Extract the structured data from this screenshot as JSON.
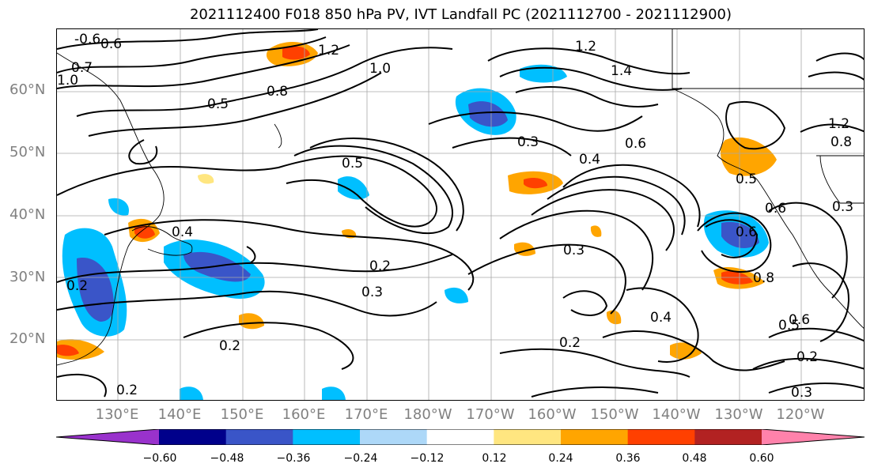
{
  "title": "2021112400 F018 850 hPa PV, IVT Landfall PC (2021112700 - 2021112900)",
  "map": {
    "lat_labels": [
      "60°N",
      "50°N",
      "40°N",
      "30°N",
      "20°N"
    ],
    "lon_labels": [
      "130°E",
      "140°E",
      "150°E",
      "160°E",
      "170°E",
      "180°W",
      "170°W",
      "160°W",
      "150°W",
      "140°W",
      "130°W",
      "120°W"
    ],
    "contour_labels": [
      "-0.6",
      "0.6",
      "0.7",
      "1.0",
      "1.2",
      "1.0",
      "1.2",
      "1.4",
      "0.5",
      "0.8",
      "0.5",
      "0.4",
      "0.6",
      "0.3",
      "0.2",
      "0.3",
      "0.2",
      "0.4",
      "0.2",
      "0.2",
      "0.3",
      "0.2",
      "0.5",
      "0.6",
      "0.6",
      "0.2",
      "0.3",
      "0.6",
      "0.8",
      "0.4",
      "0.3",
      "0.5",
      "1.2",
      "0.8"
    ]
  },
  "colorbar": {
    "ticks": [
      "−0.60",
      "−0.48",
      "−0.36",
      "−0.24",
      "−0.12",
      "0.12",
      "0.24",
      "0.36",
      "0.48",
      "0.60"
    ],
    "colors": [
      "#9932cc",
      "#00008b",
      "#3a55c8",
      "#00bfff",
      "#add8f8",
      "#ffffff",
      "#ffe680",
      "#ffa500",
      "#ff4000",
      "#b22222",
      "#ff82ab"
    ]
  }
}
